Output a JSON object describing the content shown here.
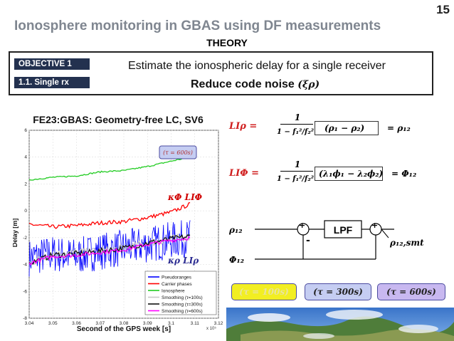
{
  "header": {
    "title": "Ionosphere monitoring in GBAS using DF measurements",
    "subtitle": "THEORY",
    "page_number": "15"
  },
  "objective": {
    "badge1": "OBJECTIVE 1",
    "badge2": "1.1. Single rx",
    "line1": "Estimate the ionospheric delay for a single receiver",
    "line2": "Reduce code noise",
    "line2_symbol": "(ξρ)"
  },
  "plot": {
    "title": "FE23:GBAS: Geometry-free LC, SV6",
    "xlabel": "Second of the GPS week [s]",
    "ylabel": "Delay [m]",
    "xticks": [
      "3.04",
      "3.05",
      "3.06",
      "3.07",
      "3.08",
      "3.09",
      "3.1",
      "3.11",
      "3.12"
    ],
    "x_exponent": "x 10⁵",
    "yticks": [
      "6",
      "4",
      "2",
      "0",
      "-2",
      "-4",
      "-6",
      "-8"
    ],
    "tau_label": "(τ = 600s)",
    "annot_phi": "κΦ LIΦ",
    "annot_rho": "κρ LIρ",
    "legend": [
      "Pseudoranges",
      "Carrier phases",
      "Ionosphere",
      "Smoothing (τ=100s)",
      "Smoothing (τ=300s)",
      "Smoothing (τ=600s)"
    ]
  },
  "chart_data": {
    "type": "line",
    "title": "FE23:GBAS: Geometry-free LC, SV6",
    "xlabel": "Second of the GPS week [s]",
    "ylabel": "Delay [m]",
    "xlim": [
      304000,
      312000
    ],
    "ylim": [
      -8,
      6
    ],
    "grid": true,
    "legend_position": "bottom-right",
    "x": [
      304000,
      305000,
      306000,
      307000,
      308000,
      309000,
      310000,
      310800
    ],
    "series": [
      {
        "name": "Pseudoranges",
        "color": "#0000ff",
        "values": [
          -3.5,
          -3.2,
          -3.4,
          -3.0,
          -2.8,
          -2.5,
          -2.2,
          -2.0
        ]
      },
      {
        "name": "Carrier phases",
        "color": "#ff0000",
        "values": [
          -1.0,
          -1.2,
          -1.1,
          -0.9,
          -0.8,
          -0.5,
          -0.1,
          0.5
        ]
      },
      {
        "name": "Ionosphere",
        "color": "#22cc22",
        "values": [
          2.3,
          2.5,
          2.6,
          2.9,
          3.0,
          3.3,
          3.7,
          4.0
        ]
      },
      {
        "name": "Smoothing (τ=100s)",
        "color": "#c8c8c8",
        "values": [
          -3.9,
          -3.2,
          -3.1,
          -3.0,
          -2.8,
          -2.4,
          -2.1,
          -1.9
        ]
      },
      {
        "name": "Smoothing (τ=300s)",
        "color": "#111111",
        "values": [
          -3.9,
          -3.3,
          -3.2,
          -3.0,
          -2.8,
          -2.4,
          -2.1,
          -1.9
        ]
      },
      {
        "name": "Smoothing (τ=600s)",
        "color": "#ff00ff",
        "values": [
          -3.9,
          -3.4,
          -3.3,
          -3.1,
          -2.9,
          -2.5,
          -2.2,
          -2.0
        ]
      }
    ]
  },
  "equations": {
    "li_rho": "LIρ =",
    "num": "1",
    "den_rho": "1 − f₁²/f₂²",
    "box_rho": "(ρ₁ − ρ₂)",
    "res_rho": "= ρ₁₂",
    "li_phi": "LIΦ =",
    "den_phi": "1 − f₁²/f₂²",
    "box_phi": "(λ₁ϕ₁ − λ₂ϕ₂)",
    "res_phi": "= Φ₁₂"
  },
  "block_diagram": {
    "input_rho": "ρ₁₂",
    "input_phi": "Φ₁₂",
    "lpf": "LPF",
    "output": "ρ₁₂,smt",
    "plus": "+",
    "minus": "-"
  },
  "tau_buttons": [
    "(τ = 100s)",
    "(τ = 300s)",
    "(τ = 600s)"
  ],
  "colors": {
    "title": "#7f8690",
    "badge": "#23314f",
    "tau_blue": "#c5cdf2",
    "tau_purple": "#c8b8f0",
    "tau_yellow": "#f2ee22"
  }
}
